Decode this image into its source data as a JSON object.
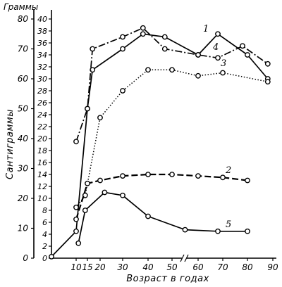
{
  "chart_data": {
    "type": "line",
    "title": "",
    "xlabel": "Возраст в годах",
    "ylabel": "Сантиграммы",
    "ylabel_secondary": "Граммы",
    "x_ticks": [
      "10",
      "15",
      "20",
      "30",
      "40",
      "50",
      "60",
      "70",
      "80",
      "90"
    ],
    "y_ticks": [
      "0",
      "10",
      "20",
      "30",
      "40",
      "50",
      "60",
      "70",
      "80"
    ],
    "y2_ticks": [
      "0",
      "2",
      "4",
      "6",
      "8",
      "10",
      "12",
      "14",
      "16",
      "18",
      "20",
      "22",
      "24",
      "26",
      "28",
      "30",
      "32",
      "34",
      "36",
      "38",
      "40"
    ],
    "ylim": [
      0,
      80
    ],
    "xlim": [
      0,
      90
    ],
    "grid": false,
    "legend": "none",
    "series": [
      {
        "name": "1",
        "style": "solid",
        "points": [
          [
            0,
            0.5
          ],
          [
            10,
            9
          ],
          [
            15,
            50
          ],
          [
            17,
            63
          ],
          [
            30,
            70
          ],
          [
            38,
            75
          ],
          [
            47,
            74
          ],
          [
            60,
            68
          ],
          [
            68,
            75
          ],
          [
            80,
            68
          ],
          [
            88,
            60
          ]
        ]
      },
      {
        "name": "4",
        "style": "dash-dot",
        "points": [
          [
            10,
            39
          ],
          [
            15,
            50
          ],
          [
            17,
            70
          ],
          [
            30,
            74
          ],
          [
            38,
            77
          ],
          [
            47,
            70
          ],
          [
            60,
            68
          ],
          [
            68,
            67
          ],
          [
            78,
            71
          ],
          [
            88,
            65
          ]
        ]
      },
      {
        "name": "3",
        "style": "dotted",
        "points": [
          [
            10,
            17
          ],
          [
            14,
            21
          ],
          [
            20,
            47
          ],
          [
            30,
            56
          ],
          [
            40,
            63
          ],
          [
            50,
            63
          ],
          [
            60,
            61
          ],
          [
            70,
            62
          ],
          [
            88,
            59
          ]
        ]
      },
      {
        "name": "2",
        "style": "dashed",
        "points": [
          [
            10,
            13
          ],
          [
            15,
            25
          ],
          [
            20,
            26
          ],
          [
            30,
            27.5
          ],
          [
            40,
            28
          ],
          [
            50,
            28
          ],
          [
            60,
            27.5
          ],
          [
            70,
            27
          ],
          [
            80,
            26
          ]
        ]
      },
      {
        "name": "5",
        "style": "solid",
        "points": [
          [
            11,
            5
          ],
          [
            14,
            16
          ],
          [
            22,
            22
          ],
          [
            30,
            21
          ],
          [
            40,
            14
          ],
          [
            55,
            9.5
          ],
          [
            68,
            9
          ],
          [
            80,
            9
          ]
        ]
      }
    ]
  }
}
